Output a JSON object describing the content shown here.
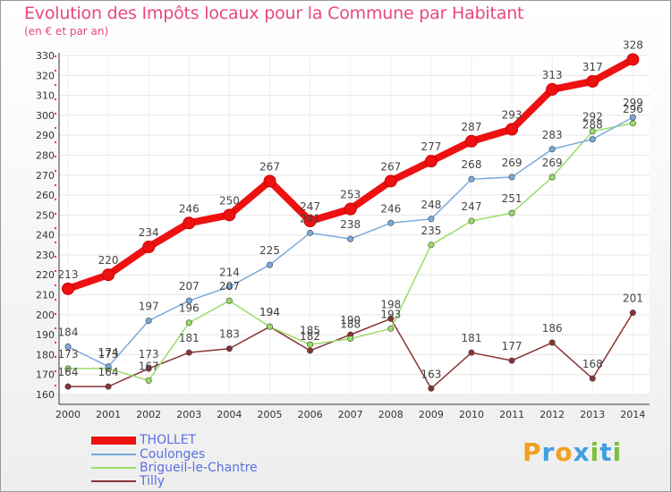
{
  "title": "Evolution des Impôts locaux pour la Commune par Habitant",
  "subtitle": "(en € et par an)",
  "logo": "Proxiti",
  "chart_data": {
    "type": "line",
    "x": [
      "2000",
      "2001",
      "2002",
      "2003",
      "2004",
      "2005",
      "2006",
      "2007",
      "2008",
      "2009",
      "2010",
      "2011",
      "2012",
      "2013",
      "2014"
    ],
    "ylim": [
      160,
      330
    ],
    "yticks": [
      160,
      170,
      180,
      190,
      200,
      210,
      220,
      230,
      240,
      250,
      260,
      270,
      280,
      290,
      300,
      310,
      320,
      330
    ],
    "grid": true,
    "legend_position": "bottom-left",
    "series": [
      {
        "name": "THOLLET",
        "color": "#ee1111",
        "values": [
          213,
          220,
          234,
          246,
          250,
          267,
          247,
          253,
          267,
          277,
          287,
          293,
          313,
          317,
          328
        ]
      },
      {
        "name": "Coulonges",
        "color": "#7aaadd",
        "values": [
          184,
          174,
          197,
          207,
          214,
          225,
          241,
          238,
          246,
          248,
          268,
          269,
          283,
          288,
          299
        ]
      },
      {
        "name": "Brigueil-le-Chantre",
        "color": "#99dd66",
        "values": [
          173,
          173,
          167,
          196,
          207,
          194,
          185,
          188,
          193,
          235,
          247,
          251,
          269,
          292,
          296
        ]
      },
      {
        "name": "Tilly",
        "color": "#883333",
        "values": [
          164,
          164,
          173,
          181,
          183,
          194,
          182,
          190,
          198,
          163,
          181,
          177,
          186,
          168,
          201
        ]
      }
    ]
  }
}
